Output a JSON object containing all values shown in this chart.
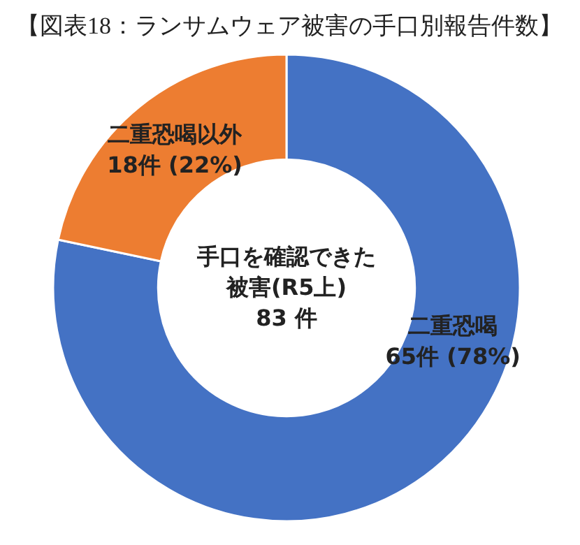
{
  "chart_data": {
    "type": "donut",
    "title": "【図表18：ランサムウェア被害の手口別報告件数】",
    "categories": [
      "二重恐喝",
      "二重恐喝以外"
    ],
    "values": [
      65,
      18
    ],
    "colors": [
      "#4472c4",
      "#ed7d31"
    ],
    "value_labels": [
      "65件 (78%)",
      "18件 (22%)"
    ],
    "annotations": [
      "手口を確認できた",
      "被害(R5上)",
      "83 件"
    ]
  }
}
